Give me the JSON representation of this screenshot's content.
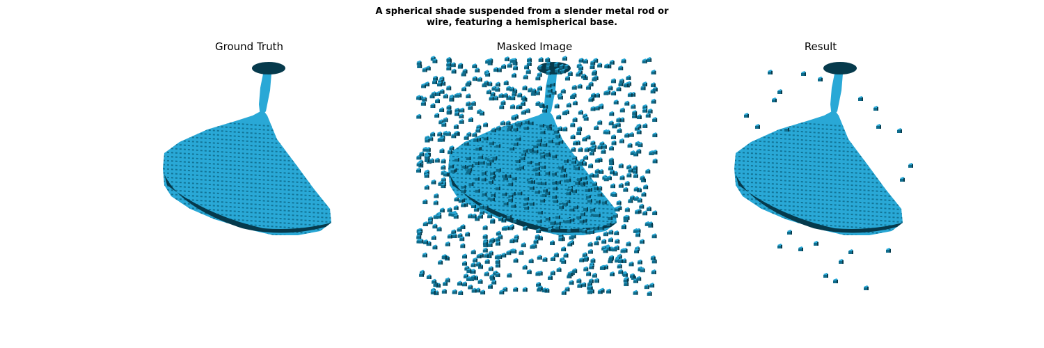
{
  "figure": {
    "suptitle_line1": "A spherical shade suspended from a slender metal rod or",
    "suptitle_line2": "wire, featuring a hemispherical base."
  },
  "panels": [
    {
      "title": "Ground Truth"
    },
    {
      "title": "Masked Image"
    },
    {
      "title": "Result"
    }
  ],
  "colors": {
    "voxel_top": "#29a8d6",
    "voxel_side": "#0f6c8c",
    "voxel_dark": "#063a4c",
    "background": "#ffffff"
  }
}
